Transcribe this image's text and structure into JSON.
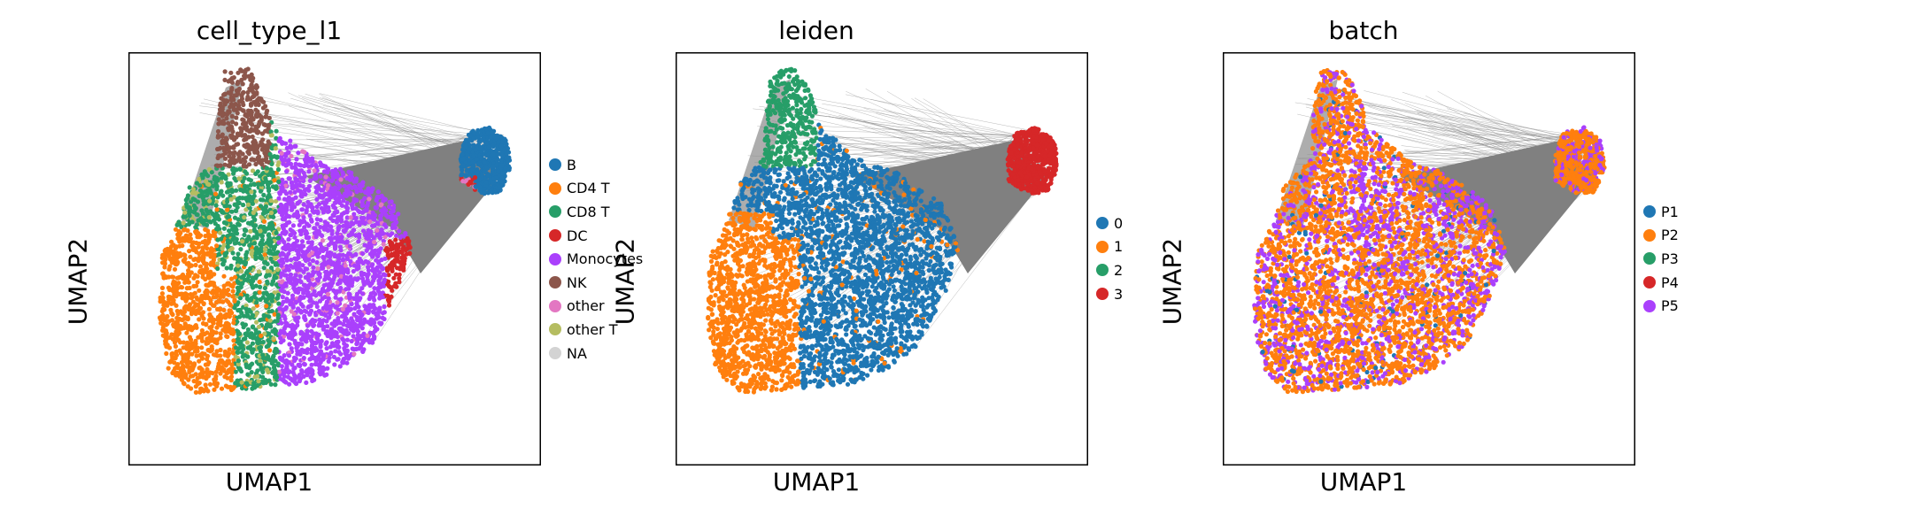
{
  "figure": {
    "xlabel": "UMAP1",
    "ylabel": "UMAP2"
  },
  "chart_data": [
    {
      "type": "scatter",
      "title": "cell_type_l1",
      "xlabel": "UMAP1",
      "ylabel": "UMAP2",
      "legend_position": "right",
      "legend": [
        {
          "label": "B",
          "color": "#1f77b4"
        },
        {
          "label": "CD4 T",
          "color": "#ff7f0e"
        },
        {
          "label": "CD8 T",
          "color": "#279e68"
        },
        {
          "label": "DC",
          "color": "#d62728"
        },
        {
          "label": "Monocytes",
          "color": "#aa40fc"
        },
        {
          "label": "NK",
          "color": "#8c564b"
        },
        {
          "label": "other",
          "color": "#e377c2"
        },
        {
          "label": "other T",
          "color": "#b5bd61"
        },
        {
          "label": "NA",
          "color": "#d3d3d3"
        }
      ]
    },
    {
      "type": "scatter",
      "title": "leiden",
      "xlabel": "UMAP1",
      "ylabel": "UMAP2",
      "legend_position": "right",
      "legend": [
        {
          "label": "0",
          "color": "#1f77b4"
        },
        {
          "label": "1",
          "color": "#ff7f0e"
        },
        {
          "label": "2",
          "color": "#279e68"
        },
        {
          "label": "3",
          "color": "#d62728"
        }
      ]
    },
    {
      "type": "scatter",
      "title": "batch",
      "xlabel": "UMAP1",
      "ylabel": "UMAP2",
      "legend_position": "right",
      "legend": [
        {
          "label": "P1",
          "color": "#1f77b4"
        },
        {
          "label": "P2",
          "color": "#ff7f0e"
        },
        {
          "label": "P3",
          "color": "#279e68"
        },
        {
          "label": "P4",
          "color": "#d62728"
        },
        {
          "label": "P5",
          "color": "#aa40fc"
        }
      ]
    }
  ],
  "colors": {
    "edges": "#808080",
    "axes_frame": "#000000"
  }
}
